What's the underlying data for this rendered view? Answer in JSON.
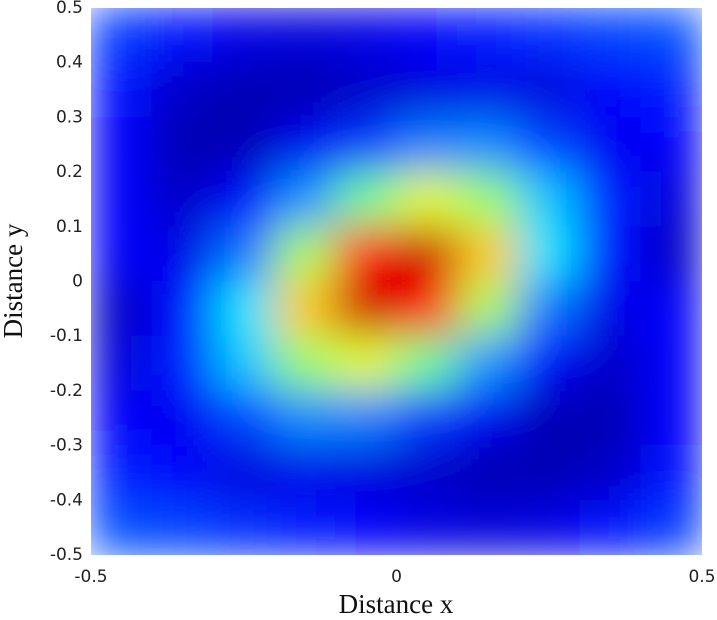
{
  "chart_data": {
    "type": "heatmap",
    "colormap": "jet",
    "xlabel": "Distance x",
    "ylabel": "Distance y",
    "xlim": [
      -0.5,
      0.5
    ],
    "ylim": [
      -0.5,
      0.5
    ],
    "xticks": [
      -0.5,
      0,
      0.5
    ],
    "yticks": [
      -0.5,
      -0.4,
      -0.3,
      -0.2,
      -0.1,
      0,
      0.1,
      0.2,
      0.3,
      0.4,
      0.5
    ],
    "zlim": [
      0,
      1
    ],
    "x": [
      -0.45,
      -0.35,
      -0.25,
      -0.15,
      -0.05,
      0.05,
      0.15,
      0.25,
      0.35,
      0.45
    ],
    "y": [
      0.45,
      0.35,
      0.25,
      0.15,
      0.05,
      -0.05,
      -0.15,
      -0.25,
      -0.35,
      -0.45
    ],
    "z": [
      [
        0.18,
        0.14,
        0.1,
        0.09,
        0.1,
        0.12,
        0.15,
        0.17,
        0.19,
        0.2
      ],
      [
        0.14,
        0.07,
        0.05,
        0.05,
        0.07,
        0.09,
        0.1,
        0.09,
        0.12,
        0.15
      ],
      [
        0.12,
        0.05,
        0.05,
        0.11,
        0.18,
        0.25,
        0.26,
        0.19,
        0.11,
        0.12
      ],
      [
        0.12,
        0.07,
        0.12,
        0.27,
        0.48,
        0.6,
        0.52,
        0.32,
        0.15,
        0.09
      ],
      [
        0.12,
        0.1,
        0.24,
        0.54,
        0.86,
        0.93,
        0.68,
        0.35,
        0.14,
        0.07
      ],
      [
        0.07,
        0.14,
        0.35,
        0.68,
        0.93,
        0.86,
        0.54,
        0.24,
        0.1,
        0.12
      ],
      [
        0.09,
        0.15,
        0.32,
        0.52,
        0.6,
        0.48,
        0.27,
        0.12,
        0.07,
        0.12
      ],
      [
        0.12,
        0.11,
        0.19,
        0.26,
        0.25,
        0.18,
        0.11,
        0.05,
        0.05,
        0.12
      ],
      [
        0.15,
        0.12,
        0.09,
        0.1,
        0.09,
        0.07,
        0.05,
        0.05,
        0.07,
        0.14
      ],
      [
        0.2,
        0.19,
        0.17,
        0.15,
        0.12,
        0.1,
        0.09,
        0.1,
        0.14,
        0.18
      ]
    ]
  }
}
